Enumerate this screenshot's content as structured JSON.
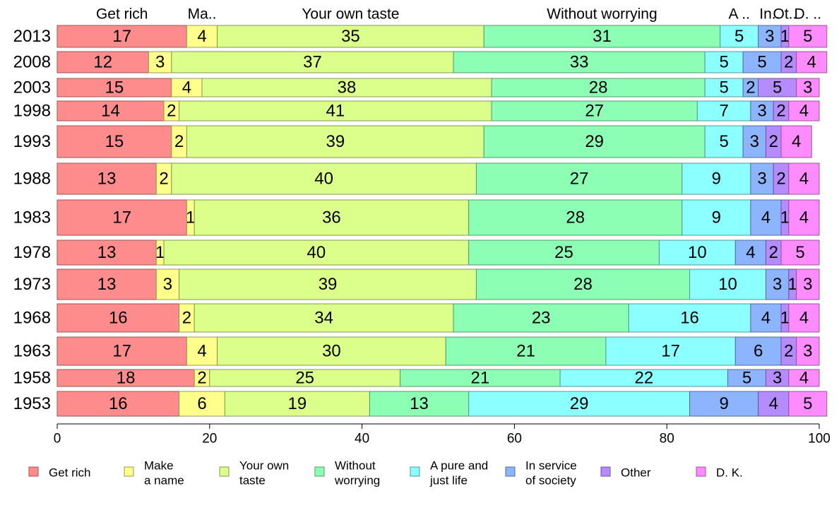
{
  "chart_data": {
    "type": "bar",
    "orientation": "horizontal",
    "stacked": true,
    "categories": [
      "2013",
      "2008",
      "2003",
      "1998",
      "1993",
      "1988",
      "1983",
      "1978",
      "1973",
      "1968",
      "1963",
      "1958",
      "1953"
    ],
    "series": [
      {
        "name": "Get rich",
        "legend": [
          "Get rich"
        ],
        "top_label": "Get rich",
        "color": "#ff8c8c",
        "values": [
          17,
          12,
          15,
          14,
          15,
          13,
          17,
          13,
          13,
          16,
          17,
          18,
          16
        ]
      },
      {
        "name": "Make a name",
        "legend": [
          "Make",
          "a name"
        ],
        "top_label": "Ma..",
        "color": "#ffff8c",
        "values": [
          4,
          3,
          4,
          2,
          2,
          2,
          1,
          1,
          3,
          2,
          4,
          2,
          6
        ]
      },
      {
        "name": "Your own taste",
        "legend": [
          "Your own",
          "taste"
        ],
        "top_label": "Your own taste",
        "color": "#dcff8c",
        "values": [
          35,
          37,
          38,
          41,
          39,
          40,
          36,
          40,
          39,
          34,
          30,
          25,
          19
        ]
      },
      {
        "name": "Without worrying",
        "legend": [
          "Without",
          "worrying"
        ],
        "top_label": "Without worrying",
        "color": "#8cffb4",
        "values": [
          31,
          33,
          28,
          27,
          29,
          27,
          28,
          25,
          28,
          23,
          21,
          21,
          13
        ]
      },
      {
        "name": "A pure and just life",
        "legend": [
          "A pure and",
          "just life"
        ],
        "top_label": "A ..",
        "color": "#8cffff",
        "values": [
          5,
          5,
          5,
          7,
          5,
          9,
          9,
          10,
          10,
          16,
          17,
          22,
          29
        ]
      },
      {
        "name": "In service of society",
        "legend": [
          "In service",
          "of society"
        ],
        "top_label": "In..",
        "color": "#8cb4ff",
        "values": [
          3,
          5,
          2,
          3,
          3,
          3,
          4,
          4,
          3,
          4,
          6,
          5,
          9
        ]
      },
      {
        "name": "Other",
        "legend": [
          "Other"
        ],
        "top_label": "Ot..",
        "color": "#b48cff",
        "values": [
          1,
          2,
          5,
          2,
          2,
          2,
          1,
          2,
          1,
          1,
          2,
          3,
          4
        ]
      },
      {
        "name": "D. K.",
        "legend": [
          "D. K."
        ],
        "top_label": "D. ..",
        "color": "#ff8cff",
        "values": [
          5,
          4,
          3,
          4,
          4,
          4,
          4,
          5,
          3,
          4,
          3,
          4,
          5
        ]
      }
    ],
    "xlim": [
      0,
      100
    ],
    "xticks": [
      0,
      20,
      40,
      60,
      80,
      100
    ],
    "xlabel": "",
    "ylabel": "",
    "title": "",
    "grid": false,
    "legend_position": "bottom"
  }
}
